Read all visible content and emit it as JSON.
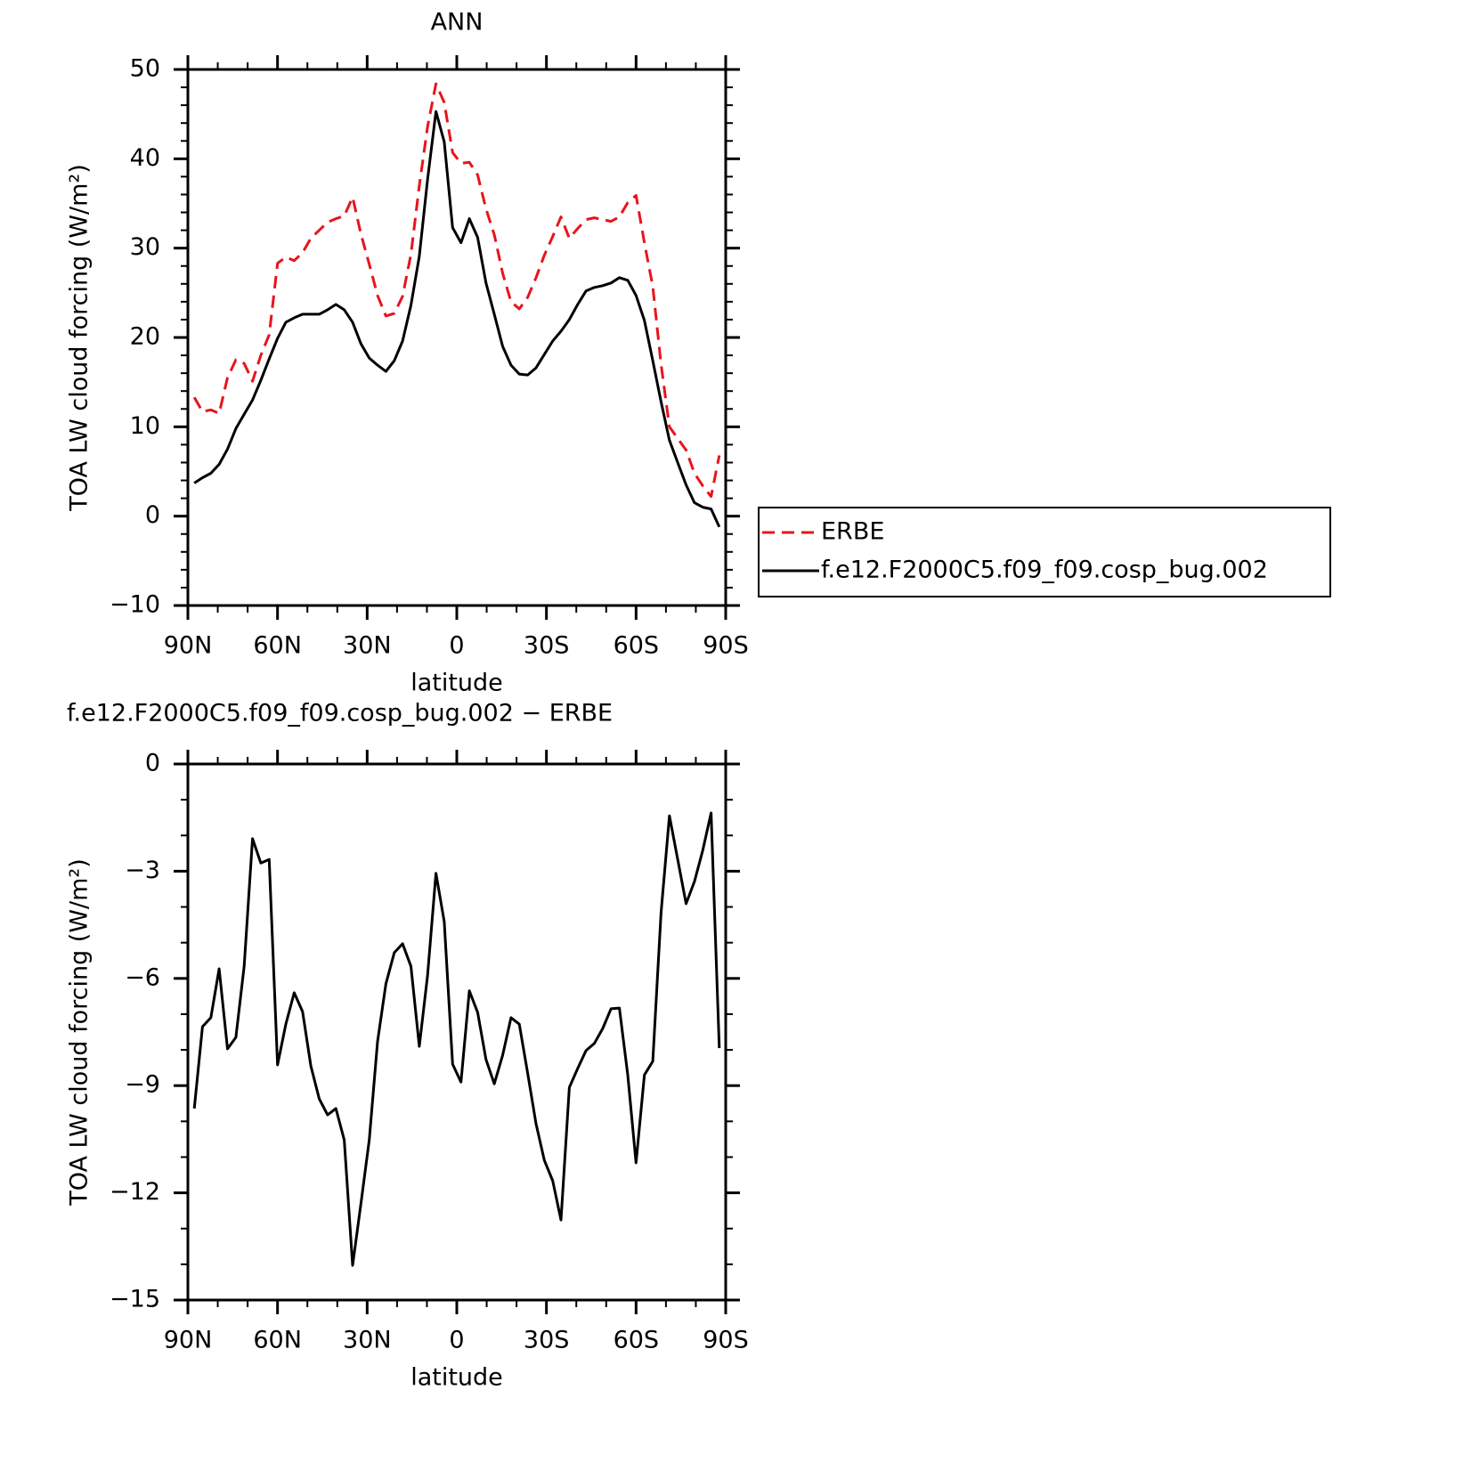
{
  "chart_data": [
    {
      "type": "line",
      "title": "ANN",
      "xlabel": "latitude",
      "ylabel": "TOA LW cloud forcing (W/m²)",
      "x": [
        87.86,
        85.1,
        82.31,
        79.53,
        76.74,
        73.95,
        71.16,
        68.37,
        65.58,
        62.79,
        60.0,
        57.21,
        54.42,
        51.63,
        48.84,
        46.04,
        43.25,
        40.46,
        37.67,
        34.88,
        32.09,
        29.3,
        26.51,
        23.72,
        20.93,
        18.14,
        15.35,
        12.56,
        9.77,
        6.98,
        4.19,
        1.4,
        -1.4,
        -4.19,
        -6.98,
        -9.77,
        -12.56,
        -15.35,
        -18.14,
        -20.93,
        -23.72,
        -26.51,
        -29.3,
        -32.09,
        -34.88,
        -37.67,
        -40.46,
        -43.25,
        -46.04,
        -48.84,
        -51.63,
        -54.42,
        -57.21,
        -60.0,
        -62.79,
        -65.58,
        -68.37,
        -71.16,
        -73.95,
        -76.74,
        -79.53,
        -82.31,
        -85.1,
        -87.86
      ],
      "series": [
        {
          "name": "ERBE",
          "color": "#e8141c",
          "line_style": "dashed",
          "values": [
            13.3,
            11.7,
            11.9,
            11.5,
            15.5,
            17.5,
            17.1,
            15.1,
            18.0,
            20.3,
            28.3,
            29.0,
            28.6,
            29.5,
            31.1,
            32.0,
            32.9,
            33.3,
            33.6,
            35.7,
            31.6,
            28.2,
            24.7,
            22.4,
            22.7,
            24.6,
            29.3,
            37.0,
            43.6,
            48.4,
            46.3,
            40.7,
            39.5,
            39.6,
            38.2,
            34.4,
            31.5,
            27.2,
            24.0,
            23.2,
            24.5,
            26.7,
            29.2,
            31.3,
            33.5,
            31.1,
            32.2,
            33.2,
            33.4,
            33.2,
            33.0,
            33.5,
            35.1,
            35.9,
            30.6,
            25.7,
            17.0,
            10.0,
            8.7,
            7.4,
            4.8,
            3.4,
            2.2,
            6.8
          ]
        },
        {
          "name": "f.e12.F2000C5.f09_f09.cosp_bug.002",
          "color": "#000000",
          "line_style": "solid",
          "values": [
            3.7,
            4.3,
            4.8,
            5.8,
            7.5,
            9.8,
            11.4,
            13.0,
            15.2,
            17.6,
            19.9,
            21.7,
            22.2,
            22.6,
            22.6,
            22.6,
            23.1,
            23.7,
            23.1,
            21.7,
            19.3,
            17.7,
            16.9,
            16.2,
            17.4,
            19.6,
            23.6,
            29.1,
            37.7,
            45.3,
            41.9,
            32.3,
            30.6,
            33.3,
            31.2,
            26.1,
            22.6,
            19.0,
            16.9,
            15.9,
            15.8,
            16.6,
            18.1,
            19.6,
            20.7,
            22.0,
            23.7,
            25.2,
            25.6,
            25.8,
            26.1,
            26.7,
            26.4,
            24.7,
            21.9,
            17.4,
            12.8,
            8.5,
            6.0,
            3.5,
            1.5,
            1.0,
            0.8,
            -1.2
          ]
        }
      ],
      "xlim": [
        90,
        -90
      ],
      "xticks": [
        {
          "value": 90,
          "label": "90N"
        },
        {
          "value": 60,
          "label": "60N"
        },
        {
          "value": 30,
          "label": "30N"
        },
        0,
        {
          "value": -30,
          "label": "30S"
        },
        {
          "value": -60,
          "label": "60S"
        },
        {
          "value": -90,
          "label": "90S"
        }
      ],
      "minor_xticks": [
        80,
        70,
        50,
        40,
        20,
        10,
        -10,
        -20,
        -40,
        -50,
        -70,
        -80
      ],
      "ylim": [
        -10,
        50
      ],
      "yticks": [
        {
          "value": -10,
          "label": "−10"
        },
        0,
        10,
        20,
        30,
        40,
        50
      ],
      "minor_yticks": [
        -8,
        -6,
        -4,
        -2,
        2,
        4,
        6,
        8,
        12,
        14,
        16,
        18,
        22,
        24,
        26,
        28,
        32,
        34,
        36,
        38,
        42,
        44,
        46,
        48
      ],
      "legend": "right"
    },
    {
      "type": "line",
      "title": "f.e12.F2000C5.f09_f09.cosp_bug.002 − ERBE",
      "xlabel": "latitude",
      "ylabel": "TOA LW cloud forcing (W/m²)",
      "x": [
        87.86,
        85.1,
        82.31,
        79.53,
        76.74,
        73.95,
        71.16,
        68.37,
        65.58,
        62.79,
        60.0,
        57.21,
        54.42,
        51.63,
        48.84,
        46.04,
        43.25,
        40.46,
        37.67,
        34.88,
        32.09,
        29.3,
        26.51,
        23.72,
        20.93,
        18.14,
        15.35,
        12.56,
        9.77,
        6.98,
        4.19,
        1.4,
        -1.4,
        -4.19,
        -6.98,
        -9.77,
        -12.56,
        -15.35,
        -18.14,
        -20.93,
        -23.72,
        -26.51,
        -29.3,
        -32.09,
        -34.88,
        -37.67,
        -40.46,
        -43.25,
        -46.04,
        -48.84,
        -51.63,
        -54.42,
        -57.21,
        -60.0,
        -62.79,
        -65.58,
        -68.37,
        -71.16,
        -73.95,
        -76.74,
        -79.53,
        -82.31,
        -85.1,
        -87.86
      ],
      "series": [
        {
          "color": "#000000",
          "line_style": "solid",
          "values": [
            -9.64,
            -7.35,
            -7.1,
            -5.73,
            -7.97,
            -7.65,
            -5.66,
            -2.09,
            -2.77,
            -2.67,
            -8.42,
            -7.28,
            -6.4,
            -6.93,
            -8.45,
            -9.37,
            -9.82,
            -9.64,
            -10.52,
            -14.03,
            -12.31,
            -10.52,
            -7.77,
            -6.15,
            -5.28,
            -5.03,
            -5.66,
            -7.9,
            -5.91,
            -3.06,
            -4.41,
            -8.4,
            -8.9,
            -6.35,
            -6.95,
            -8.27,
            -8.95,
            -8.15,
            -7.1,
            -7.28,
            -8.65,
            -10.07,
            -11.09,
            -11.66,
            -12.76,
            -9.05,
            -8.52,
            -8.02,
            -7.82,
            -7.4,
            -6.85,
            -6.83,
            -8.7,
            -11.16,
            -8.7,
            -8.32,
            -4.16,
            -1.45,
            -2.67,
            -3.91,
            -3.29,
            -2.42,
            -1.37,
            -7.95
          ]
        }
      ],
      "xlim": [
        90,
        -90
      ],
      "xticks": [
        {
          "value": 90,
          "label": "90N"
        },
        {
          "value": 60,
          "label": "60N"
        },
        {
          "value": 30,
          "label": "30N"
        },
        0,
        {
          "value": -30,
          "label": "30S"
        },
        {
          "value": -60,
          "label": "60S"
        },
        {
          "value": -90,
          "label": "90S"
        }
      ],
      "minor_xticks": [
        80,
        70,
        50,
        40,
        20,
        10,
        -10,
        -20,
        -40,
        -50,
        -70,
        -80
      ],
      "ylim": [
        -15,
        0
      ],
      "yticks": [
        {
          "value": -15,
          "label": "−15"
        },
        {
          "value": -12,
          "label": "−12"
        },
        {
          "value": -9,
          "label": "−9"
        },
        {
          "value": -6,
          "label": "−6"
        },
        {
          "value": -3,
          "label": "−3"
        },
        0
      ],
      "minor_yticks": [
        -14,
        -13,
        -11,
        -10,
        -8,
        -7,
        -5,
        -4,
        -2,
        -1
      ]
    }
  ]
}
